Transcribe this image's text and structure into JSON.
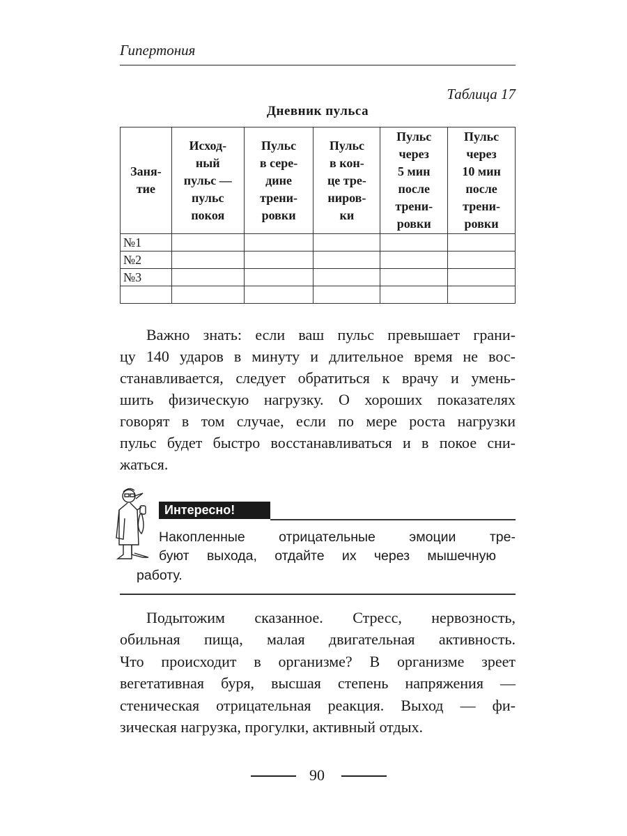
{
  "running_head": "Гипертония",
  "table": {
    "label": "Таблица 17",
    "title": "Дневник пульса",
    "headers": [
      "Заня-\nтие",
      "Исход-\nный\nпульс —\nпульс\nпокоя",
      "Пульс\nв сере-\nдине\nтрени-\nровки",
      "Пульс\nв кон-\nце тре-\nниров-\nки",
      "Пульс\nчерез\n5 мин\nпосле\nтрени-\nровки",
      "Пульс\nчерез\n10 мин\nпосле\nтрени-\nровки"
    ],
    "rows": [
      [
        "№1",
        "",
        "",
        "",
        "",
        ""
      ],
      [
        "№2",
        "",
        "",
        "",
        "",
        ""
      ],
      [
        "№3",
        "",
        "",
        "",
        "",
        ""
      ],
      [
        "",
        "",
        "",
        "",
        "",
        ""
      ]
    ]
  },
  "paragraph1": [
    "Важно знать: если ваш пульс превышает грани-",
    "цу 140 ударов в минуту и длительное время не вос-",
    "станавливается, следует обратиться к врачу и умень-",
    "шить физическую нагрузку. О хороших показателях",
    "говорят в том случае, если по мере роста нагрузки",
    "пульс будет быстро восстанавливаться и в покое сни-",
    "жаться."
  ],
  "callout": {
    "icon": "doctor-with-stethoscope-icon",
    "label": "Интересно!",
    "lines": [
      "Накопленные отрицательные эмоции тре-",
      "буют выхода, отдайте их через мышечную",
      "работу."
    ]
  },
  "paragraph2": [
    "Подытожим сказанное. Стресс, нервозность,",
    "обильная пища, малая двигательная активность.",
    "Что происходит в организме? В организме зреет",
    "вегетативная буря, высшая степень напряжения —",
    "стеническая отрицательная реакция. Выход — фи-",
    "зическая нагрузка, прогулки, активный отдых."
  ],
  "page_number": "90"
}
